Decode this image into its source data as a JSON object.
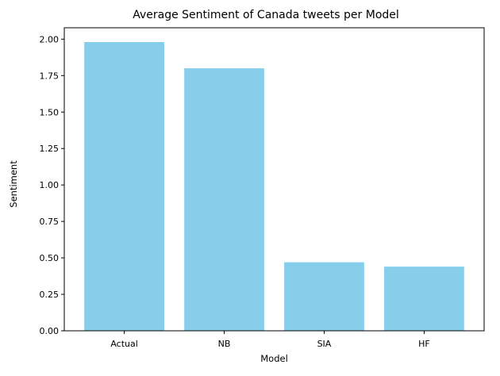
{
  "chart_data": {
    "type": "bar",
    "title": "Average Sentiment of Canada tweets per Model",
    "xlabel": "Model",
    "ylabel": "Sentiment",
    "categories": [
      "Actual",
      "NB",
      "SIA",
      "HF"
    ],
    "values": [
      1.98,
      1.8,
      0.47,
      0.44
    ],
    "ylim": [
      0,
      2.078
    ],
    "yticks": [
      "0.00",
      "0.25",
      "0.50",
      "0.75",
      "1.00",
      "1.25",
      "1.50",
      "1.75",
      "2.00"
    ],
    "bar_color": "#87ceeb",
    "grid": false,
    "legend": false
  }
}
